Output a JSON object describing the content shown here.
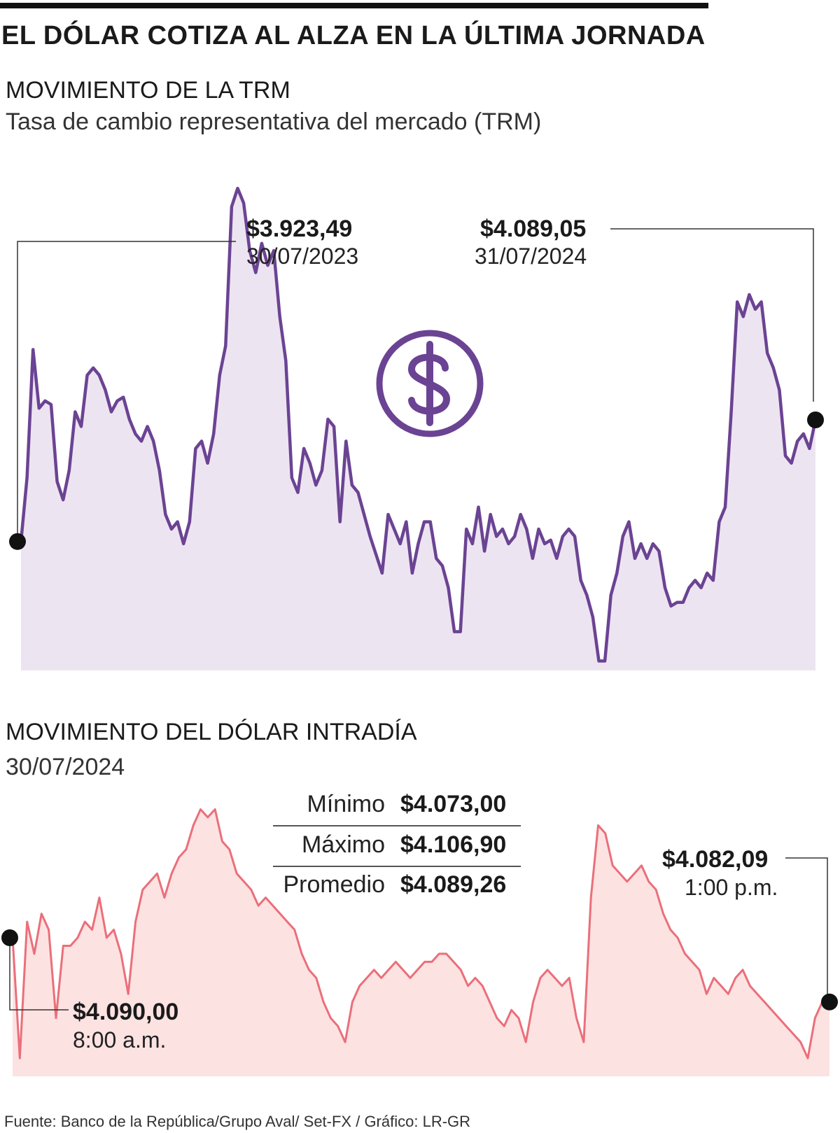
{
  "header": {
    "title": "EL DÓLAR COTIZA AL ALZA EN LA ÚLTIMA JORNADA"
  },
  "trm": {
    "section_title": "MOVIMIENTO DE LA TRM",
    "subtitle": "Tasa de cambio representativa del mercado (TRM)",
    "start_callout": {
      "value": "$3.923,49",
      "date": "30/07/2023"
    },
    "end_callout": {
      "value": "$4.089,05",
      "date": "31/07/2024"
    },
    "icon": "dollar-circle-icon"
  },
  "intraday": {
    "section_title": "MOVIMIENTO DEL DÓLAR INTRADÍA",
    "date": "30/07/2024",
    "stats": [
      {
        "label": "Mínimo",
        "value": "$4.073,00"
      },
      {
        "label": "Máximo",
        "value": "$4.106,90"
      },
      {
        "label": "Promedio",
        "value": "$4.089,26"
      }
    ],
    "start_callout": {
      "value": "$4.090,00",
      "time": "8:00 a.m."
    },
    "end_callout": {
      "value": "$4.082,09",
      "time": "1:00 p.m."
    }
  },
  "footer": {
    "source": "Fuente: Banco de la República/Grupo Aval/ Set-FX / Gráfico: LR-GR"
  },
  "colors": {
    "trm_line": "#6b4393",
    "trm_fill": "#ede4f1",
    "intraday_line": "#ea6f7a",
    "intraday_fill": "#fde2e2",
    "marker": "#111111"
  },
  "chart_data": [
    {
      "type": "line",
      "title": "MOVIMIENTO DE LA TRM",
      "subtitle": "Tasa de cambio representativa del mercado (TRM)",
      "x_start": "30/07/2023",
      "x_end": "31/07/2024",
      "y_unit": "COP",
      "approx_ylim": [
        3750,
        4450
      ],
      "series": [
        {
          "values": [
            3923,
            4010,
            4185,
            4105,
            4115,
            4110,
            4005,
            3980,
            4020,
            4100,
            4080,
            4150,
            4160,
            4150,
            4130,
            4100,
            4115,
            4120,
            4090,
            4070,
            4060,
            4080,
            4060,
            4020,
            3960,
            3940,
            3950,
            3920,
            3950,
            4050,
            4060,
            4030,
            4070,
            4150,
            4190,
            4380,
            4405,
            4385,
            4320,
            4290,
            4330,
            4300,
            4320,
            4230,
            4170,
            4010,
            3990,
            4050,
            4030,
            4000,
            4020,
            4090,
            4080,
            3950,
            4060,
            4000,
            3990,
            3960,
            3930,
            3905,
            3880,
            3960,
            3940,
            3920,
            3950,
            3880,
            3920,
            3950,
            3950,
            3900,
            3890,
            3860,
            3800,
            3800,
            3940,
            3920,
            3970,
            3910,
            3960,
            3930,
            3940,
            3920,
            3930,
            3960,
            3940,
            3900,
            3940,
            3920,
            3925,
            3900,
            3930,
            3940,
            3930,
            3870,
            3850,
            3820,
            3760,
            3760,
            3850,
            3880,
            3930,
            3950,
            3900,
            3920,
            3900,
            3920,
            3910,
            3860,
            3835,
            3840,
            3840,
            3860,
            3870,
            3860,
            3880,
            3870,
            3950,
            3970,
            4100,
            4250,
            4230,
            4260,
            4240,
            4250,
            4180,
            4160,
            4130,
            4040,
            4030,
            4060,
            4070,
            4050,
            4089
          ]
        }
      ]
    },
    {
      "type": "line",
      "title": "MOVIMIENTO DEL DÓLAR INTRADÍA",
      "date": "30/07/2024",
      "x_start": "8:00 a.m.",
      "x_end": "1:00 p.m.",
      "y_unit": "COP",
      "min": 4073.0,
      "max": 4106.9,
      "average": 4089.26,
      "approx_ylim": [
        4073,
        4107
      ],
      "series": [
        {
          "values": [
            4090,
            4075,
            4092,
            4088,
            4093,
            4091,
            4080,
            4089,
            4089,
            4090,
            4092,
            4091,
            4095,
            4090,
            4091,
            4088,
            4083,
            4092,
            4096,
            4097,
            4098,
            4095,
            4098,
            4100,
            4101,
            4104,
            4106,
            4105,
            4106,
            4102,
            4101,
            4098,
            4097,
            4096,
            4094,
            4095,
            4094,
            4093,
            4092,
            4091,
            4088,
            4086,
            4085,
            4082,
            4080,
            4079,
            4077,
            4082,
            4084,
            4085,
            4086,
            4085,
            4086,
            4087,
            4086,
            4085,
            4086,
            4087,
            4087,
            4088,
            4088,
            4087,
            4086,
            4084,
            4085,
            4084,
            4082,
            4080,
            4079,
            4081,
            4080,
            4077,
            4082,
            4085,
            4086,
            4085,
            4084,
            4085,
            4080,
            4077,
            4095,
            4104,
            4103,
            4099,
            4098,
            4097,
            4098,
            4099,
            4097,
            4096,
            4093,
            4091,
            4090,
            4088,
            4087,
            4086,
            4083,
            4085,
            4084,
            4083,
            4085,
            4086,
            4084,
            4083,
            4082,
            4081,
            4080,
            4079,
            4078,
            4077,
            4075,
            4080,
            4082,
            4082
          ]
        }
      ]
    }
  ]
}
